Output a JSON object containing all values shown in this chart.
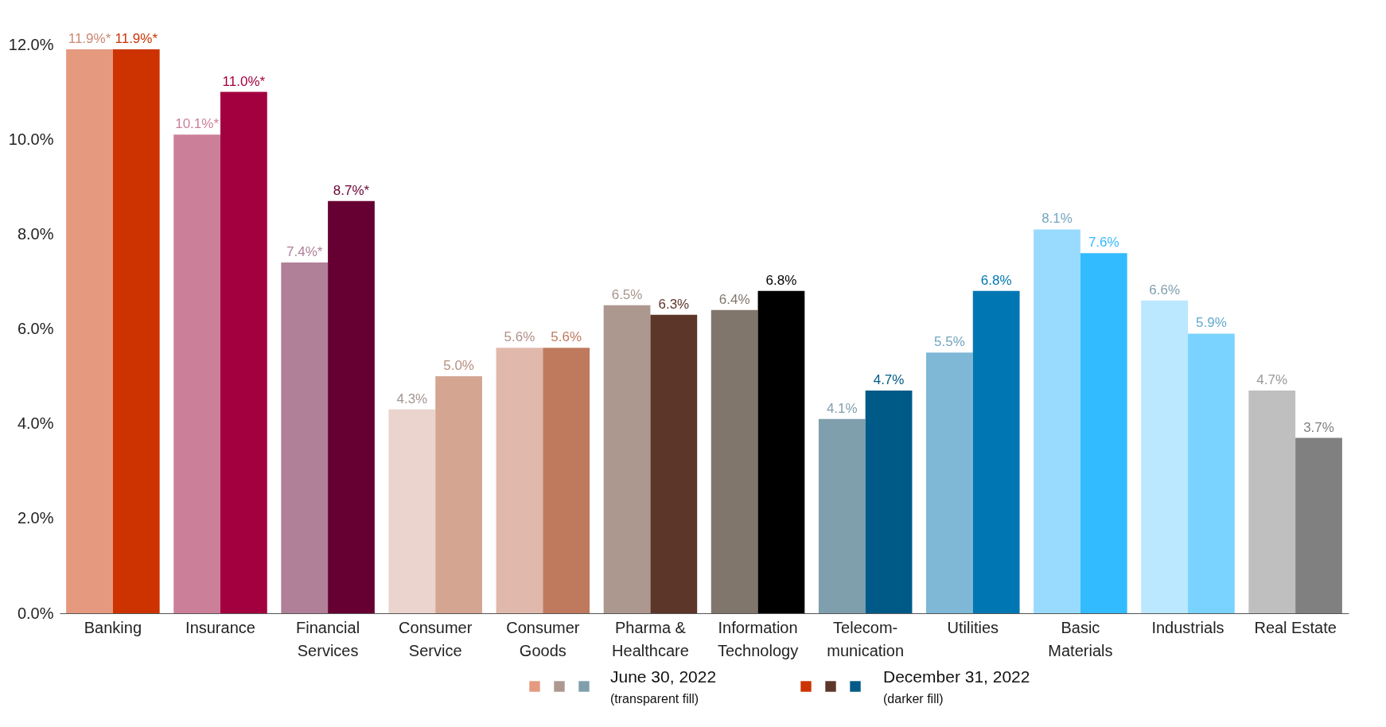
{
  "chart_data": {
    "type": "bar",
    "categories": [
      "Banking",
      "Insurance",
      "Financial Services",
      "Consumer Service",
      "Consumer Goods",
      "Pharma & Healthcare",
      "Information Technology",
      "Telecom-munication",
      "Utilities",
      "Basic Materials",
      "Industrials",
      "Real Estate"
    ],
    "series": [
      {
        "name": "June 30, 2022",
        "colors": [
          "#e59a80",
          "#cc7f99",
          "#b07f98",
          "#ead4cd",
          "#e0b9ac",
          "#ad9890",
          "#80766c",
          "#809fad",
          "#7fb8d6",
          "#99dbff",
          "#bbe8ff",
          "#bfbfbf"
        ],
        "values": [
          11.9,
          10.1,
          7.4,
          4.3,
          5.6,
          6.5,
          6.4,
          4.1,
          5.5,
          8.1,
          6.6,
          4.7
        ],
        "value_labels": [
          "11.9%*",
          "10.1%*",
          "7.4%*",
          "4.3%",
          "5.6%",
          "6.5%",
          "6.4%",
          "4.1%",
          "5.5%",
          "8.1%",
          "6.6%",
          "4.7%"
        ]
      },
      {
        "name": "December 31, 2022",
        "colors": [
          "#cc3300",
          "#a3003f",
          "#660033",
          "#d4a692",
          "#bf7a5e",
          "#5c3629",
          "#000000",
          "#005a87",
          "#0077b3",
          "#33bbff",
          "#7ad3ff",
          "#808080"
        ],
        "values": [
          11.9,
          11.0,
          8.7,
          5.0,
          5.6,
          6.3,
          6.8,
          4.7,
          6.8,
          7.6,
          5.9,
          3.7
        ],
        "value_labels": [
          "11.9%*",
          "11.0%*",
          "8.7%*",
          "5.0%",
          "5.6%",
          "6.3%",
          "6.8%",
          "4.7%",
          "6.8%",
          "7.6%",
          "5.9%",
          "3.7%"
        ]
      }
    ],
    "ylim": [
      0,
      12
    ],
    "yticks": [
      {
        "value": 0,
        "label": "0.0%"
      },
      {
        "value": 2,
        "label": "2.0%"
      },
      {
        "value": 4,
        "label": "4.0%"
      },
      {
        "value": 6,
        "label": "6.0%"
      },
      {
        "value": 8,
        "label": "8.0%"
      },
      {
        "value": 10,
        "label": "10.0%"
      },
      {
        "value": 12,
        "label": "12.0%"
      }
    ],
    "grid": false,
    "legend": "bottom",
    "annotations": [
      "(transparent fill)",
      "(darker fill)"
    ]
  }
}
